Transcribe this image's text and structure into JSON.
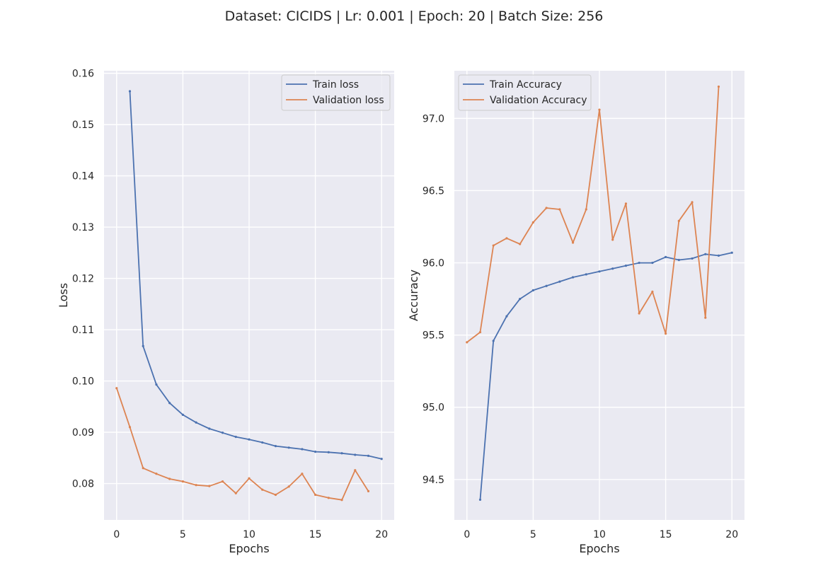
{
  "figure": {
    "title": "Dataset: CICIDS | Lr: 0.001 | Epoch: 20 | Batch Size: 256"
  },
  "colors": {
    "background": "#eaeaf2",
    "grid": "#ffffff",
    "train": "#4c72b0",
    "validation": "#dd8452"
  },
  "chart_data": [
    {
      "type": "line",
      "title": "",
      "xlabel": "Epochs",
      "ylabel": "Loss",
      "xlim": [
        -0.95,
        20.95
      ],
      "ylim": [
        0.0729,
        0.1605
      ],
      "xticks": [
        0,
        5,
        10,
        15,
        20
      ],
      "yticks": [
        0.08,
        0.09,
        0.1,
        0.11,
        0.12,
        0.13,
        0.14,
        0.15,
        0.16
      ],
      "ytick_labels": [
        "0.08",
        "0.09",
        "0.10",
        "0.11",
        "0.12",
        "0.13",
        "0.14",
        "0.15",
        "0.16"
      ],
      "grid": true,
      "legend": "upper right",
      "series": [
        {
          "name": "Train loss",
          "color": "#4c72b0",
          "x": [
            1,
            2,
            3,
            4,
            5,
            6,
            7,
            8,
            9,
            10,
            11,
            12,
            13,
            14,
            15,
            16,
            17,
            18,
            19,
            20
          ],
          "y": [
            0.1565,
            0.1068,
            0.0993,
            0.0957,
            0.0934,
            0.0919,
            0.0907,
            0.0899,
            0.0891,
            0.0886,
            0.088,
            0.0873,
            0.087,
            0.0867,
            0.0862,
            0.0861,
            0.0859,
            0.0856,
            0.0854,
            0.0848
          ]
        },
        {
          "name": "Validation loss",
          "color": "#dd8452",
          "x": [
            0,
            1,
            2,
            3,
            4,
            5,
            6,
            7,
            8,
            9,
            10,
            11,
            12,
            13,
            14,
            15,
            16,
            17,
            18,
            19
          ],
          "y": [
            0.0986,
            0.091,
            0.083,
            0.0819,
            0.0809,
            0.0804,
            0.0797,
            0.0795,
            0.0804,
            0.0781,
            0.081,
            0.0788,
            0.0778,
            0.0794,
            0.0819,
            0.0778,
            0.0772,
            0.0768,
            0.0826,
            0.0785
          ]
        }
      ]
    },
    {
      "type": "line",
      "title": "",
      "xlabel": "Epochs",
      "ylabel": "Accuracy",
      "xlim": [
        -0.95,
        20.95
      ],
      "ylim": [
        94.22,
        97.33
      ],
      "xticks": [
        0,
        5,
        10,
        15,
        20
      ],
      "yticks": [
        94.5,
        95.0,
        95.5,
        96.0,
        96.5,
        97.0
      ],
      "ytick_labels": [
        "94.5",
        "95.0",
        "95.5",
        "96.0",
        "96.5",
        "97.0"
      ],
      "grid": true,
      "legend": "upper left",
      "series": [
        {
          "name": "Train Accuracy",
          "color": "#4c72b0",
          "x": [
            1,
            2,
            3,
            4,
            5,
            6,
            7,
            8,
            9,
            10,
            11,
            12,
            13,
            14,
            15,
            16,
            17,
            18,
            19,
            20
          ],
          "y": [
            94.36,
            95.46,
            95.63,
            95.75,
            95.81,
            95.84,
            95.87,
            95.9,
            95.92,
            95.94,
            95.96,
            95.98,
            96.0,
            96.0,
            96.04,
            96.02,
            96.03,
            96.06,
            96.05,
            96.07
          ]
        },
        {
          "name": "Validation Accuracy",
          "color": "#dd8452",
          "x": [
            0,
            1,
            2,
            3,
            4,
            5,
            6,
            7,
            8,
            9,
            10,
            11,
            12,
            13,
            14,
            15,
            16,
            17,
            18,
            19
          ],
          "y": [
            95.45,
            95.52,
            96.12,
            96.17,
            96.13,
            96.28,
            96.38,
            96.37,
            96.14,
            96.37,
            97.06,
            96.16,
            96.41,
            95.65,
            95.8,
            95.51,
            96.29,
            96.42,
            95.62,
            97.22
          ]
        }
      ]
    }
  ]
}
